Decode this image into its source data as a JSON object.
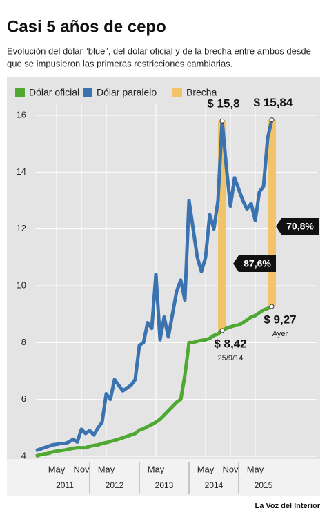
{
  "chart_data": {
    "type": "line",
    "title": "Casi 5 años de cepo",
    "subtitle": [
      "Evolución del dólar “blue”, del dólar oficial y de la brecha entre ambos desde",
      "que se impusieron las primeras restricciones cambiarias."
    ],
    "source": "La Voz del Interior",
    "x": [
      "2010-12",
      "2011-01",
      "2011-02",
      "2011-03",
      "2011-04",
      "2011-05",
      "2011-06",
      "2011-07",
      "2011-08",
      "2011-09",
      "2011-10",
      "2011-11",
      "2011-12",
      "2012-01",
      "2012-02",
      "2012-03",
      "2012-04",
      "2012-05",
      "2012-06",
      "2012-07",
      "2012-08",
      "2012-09",
      "2012-10",
      "2012-11",
      "2012-12",
      "2013-01",
      "2013-02",
      "2013-03",
      "2013-04",
      "2013-05",
      "2013-06",
      "2013-07",
      "2013-08",
      "2013-09",
      "2013-10",
      "2013-11",
      "2013-12",
      "2014-01",
      "2014-02",
      "2014-03",
      "2014-04",
      "2014-05",
      "2014-06",
      "2014-07",
      "2014-08",
      "2014-09",
      "2014-10",
      "2014-11",
      "2014-12",
      "2015-01",
      "2015-02",
      "2015-03",
      "2015-04",
      "2015-05",
      "2015-06",
      "2015-07",
      "2015-08",
      "2015-09"
    ],
    "series": [
      {
        "name": "Dólar oficial",
        "color": "#4ea832",
        "values": [
          4.0,
          4.05,
          4.08,
          4.1,
          4.15,
          4.18,
          4.2,
          4.22,
          4.25,
          4.28,
          4.3,
          4.3,
          4.3,
          4.35,
          4.38,
          4.4,
          4.45,
          4.48,
          4.52,
          4.56,
          4.6,
          4.65,
          4.7,
          4.75,
          4.8,
          4.92,
          4.97,
          5.05,
          5.12,
          5.2,
          5.3,
          5.45,
          5.6,
          5.75,
          5.9,
          6.0,
          6.85,
          8.0,
          8.0,
          8.05,
          8.08,
          8.1,
          8.15,
          8.25,
          8.3,
          8.42,
          8.5,
          8.55,
          8.6,
          8.62,
          8.7,
          8.8,
          8.9,
          8.95,
          9.05,
          9.15,
          9.2,
          9.27
        ],
        "value_labels": [
          null,
          null,
          null,
          null,
          null,
          null,
          null,
          null,
          null,
          null,
          null,
          null,
          null,
          null,
          null,
          null,
          null,
          null,
          null,
          null,
          null,
          null,
          null,
          null,
          null,
          null,
          null,
          null,
          null,
          null,
          null,
          null,
          null,
          null,
          null,
          null,
          null,
          null,
          null,
          null,
          null,
          null,
          null,
          null,
          null,
          "$ 8,42",
          null,
          null,
          null,
          null,
          null,
          null,
          null,
          null,
          null,
          null,
          null,
          "$ 9,27"
        ]
      },
      {
        "name": "Dólar paralelo",
        "color": "#3b72b0",
        "values": [
          4.2,
          4.25,
          4.3,
          4.35,
          4.4,
          4.42,
          4.45,
          4.45,
          4.5,
          4.6,
          4.5,
          4.95,
          4.8,
          4.9,
          4.75,
          5.0,
          5.2,
          6.2,
          6.0,
          6.7,
          6.5,
          6.3,
          6.4,
          6.5,
          6.7,
          7.9,
          8.0,
          8.7,
          8.5,
          10.4,
          8.1,
          8.9,
          8.2,
          9.0,
          9.8,
          10.2,
          9.5,
          13.0,
          12.0,
          11.0,
          10.5,
          11.0,
          12.5,
          12.0,
          13.0,
          15.8,
          14.2,
          12.8,
          13.8,
          13.4,
          13.0,
          12.7,
          12.9,
          12.3,
          13.3,
          13.5,
          15.2,
          15.84
        ],
        "value_labels": [
          null,
          null,
          null,
          null,
          null,
          null,
          null,
          null,
          null,
          null,
          null,
          null,
          null,
          null,
          null,
          null,
          null,
          null,
          null,
          null,
          null,
          null,
          null,
          null,
          null,
          null,
          null,
          null,
          null,
          null,
          null,
          null,
          null,
          null,
          null,
          null,
          null,
          null,
          null,
          null,
          null,
          null,
          null,
          null,
          null,
          "$ 15,8",
          null,
          null,
          null,
          null,
          null,
          null,
          null,
          null,
          null,
          null,
          null,
          "$ 15,84"
        ]
      }
    ],
    "brecha": {
      "name": "Brecha",
      "color": "#f2c46a",
      "x": [
        "2014-09",
        "2015-09"
      ],
      "values": [
        87.6,
        70.8
      ],
      "value_labels": [
        "87,6%",
        "70,8%"
      ]
    },
    "annotations": [
      {
        "x": "2014-09",
        "text": "25/9/14"
      },
      {
        "x": "2015-09",
        "text": "Ayer"
      }
    ],
    "xlim": [
      "2010-12",
      "2015-09"
    ],
    "xticks": [
      {
        "value": "2011-05",
        "label": "May"
      },
      {
        "value": "2011-11",
        "label": "Nov"
      },
      {
        "value": "2012-05",
        "label": "May"
      },
      {
        "value": "2013-05",
        "label": "May"
      },
      {
        "value": "2014-05",
        "label": "May"
      },
      {
        "value": "2014-11",
        "label": "Nov"
      },
      {
        "value": "2015-05",
        "label": "May"
      }
    ],
    "year_labels": [
      "2011",
      "2012",
      "2013",
      "2014",
      "2015"
    ],
    "ylim": [
      4,
      16
    ],
    "yticks": [
      4,
      6,
      8,
      10,
      12,
      14,
      16
    ],
    "grid": true
  }
}
